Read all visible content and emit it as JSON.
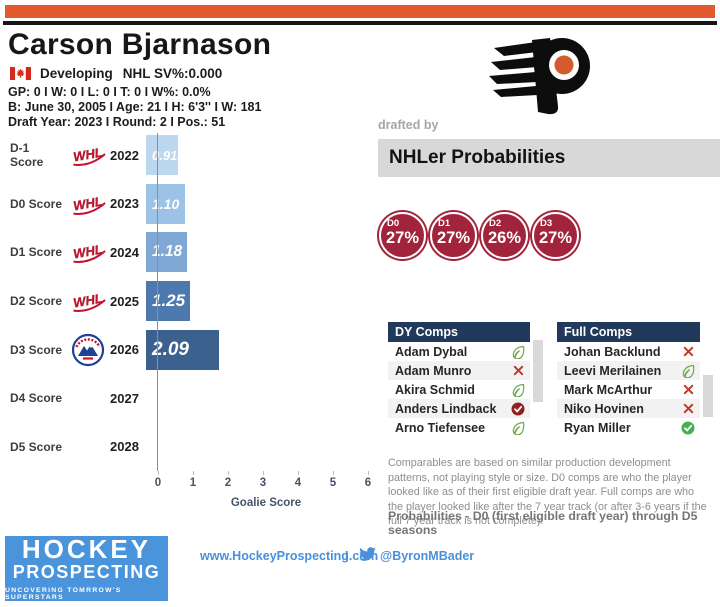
{
  "header": {
    "player_name": "Carson Bjarnason",
    "nationality": "Canada",
    "status": "Developing",
    "nhl_stat": "NHL SV%:0.000",
    "record": "GP: 0 I W: 0 I L: 0 I T: 0 I W%: 0.0%",
    "bio": "B: June 30, 2005 I Age: 21 I H: 6'3'' I W: 181",
    "draft": "Draft Year: 2023 I Round: 2 I Pos.: 51"
  },
  "drafted_by": {
    "label": "drafted by",
    "team": "Philadelphia Flyers"
  },
  "probabilities": {
    "title": "NHLer Probabilities",
    "items": [
      {
        "label": "D0",
        "value": "27%"
      },
      {
        "label": "D1",
        "value": "27%"
      },
      {
        "label": "D2",
        "value": "26%"
      },
      {
        "label": "D3",
        "value": "27%"
      }
    ]
  },
  "chart_data": {
    "type": "bar",
    "orientation": "horizontal",
    "title": "",
    "xlabel": "Goalie Score",
    "xlim": [
      0,
      6
    ],
    "xticks": [
      "0",
      "1",
      "2",
      "3",
      "4",
      "5",
      "6"
    ],
    "categories": [
      "D-1 Score",
      "D0 Score",
      "D1 Score",
      "D2 Score",
      "D3 Score",
      "D4 Score",
      "D5 Score"
    ],
    "years": [
      "2022",
      "2023",
      "2024",
      "2025",
      "2026",
      "2027",
      "2028"
    ],
    "leagues": [
      "WHL",
      "WHL",
      "WHL",
      "WHL",
      "AHL",
      "",
      ""
    ],
    "values": [
      0.91,
      1.1,
      1.18,
      1.25,
      2.09,
      null,
      null
    ],
    "value_labels": [
      "0.91",
      "1.10",
      "1.18",
      "1.25",
      "2.09",
      "",
      ""
    ],
    "bar_colors": [
      "#BDD7EE",
      "#9CC2E5",
      "#7FA8D4",
      "#4E79AF",
      "#3D618F"
    ],
    "grid": false,
    "legend": false
  },
  "comps": {
    "dy": {
      "title": "DY Comps",
      "rows": [
        {
          "name": "Adam Dybal",
          "icon": "leaf"
        },
        {
          "name": "Adam Munro",
          "icon": "x"
        },
        {
          "name": "Akira Schmid",
          "icon": "leaf"
        },
        {
          "name": "Anders Lindback",
          "icon": "check-darkred"
        },
        {
          "name": "Arno Tiefensee",
          "icon": "leaf"
        }
      ]
    },
    "full": {
      "title": "Full Comps",
      "rows": [
        {
          "name": "Johan Backlund",
          "icon": "x"
        },
        {
          "name": "Leevi Merilainen",
          "icon": "leaf"
        },
        {
          "name": "Mark McArthur",
          "icon": "x"
        },
        {
          "name": "Niko Hovinen",
          "icon": "x"
        },
        {
          "name": "Ryan Miller",
          "icon": "check-green"
        }
      ]
    }
  },
  "notes": {
    "comparables": "Comparables are based on similar production development patterns, not playing style or size. D0 comps are who the player looked like as of their first eligible draft year. Full comps are who the player looked like after the 7 year track (or after 3-6 years if the full 7 year track is not complete).",
    "probabilities": "Probabilities - D0 (first eligible draft year) through D5 seasons"
  },
  "footer": {
    "logo_line1": "HOCKEY",
    "logo_line2": "PROSPECTING",
    "logo_tagline": "UNCOVERING TOMRROW'S SUPERSTARS",
    "url": "www.HockeyProspecting.com",
    "separator": "I",
    "twitter_handle": "@ByronMBader"
  },
  "colors": {
    "accent_orange": "#E2592B",
    "crimson": "#A2243C",
    "table_navy": "#21395B",
    "footer_blue": "#4A94DC",
    "link_blue": "#4A90D9",
    "leaf_green": "#6FA84C",
    "x_red": "#C0392B"
  }
}
